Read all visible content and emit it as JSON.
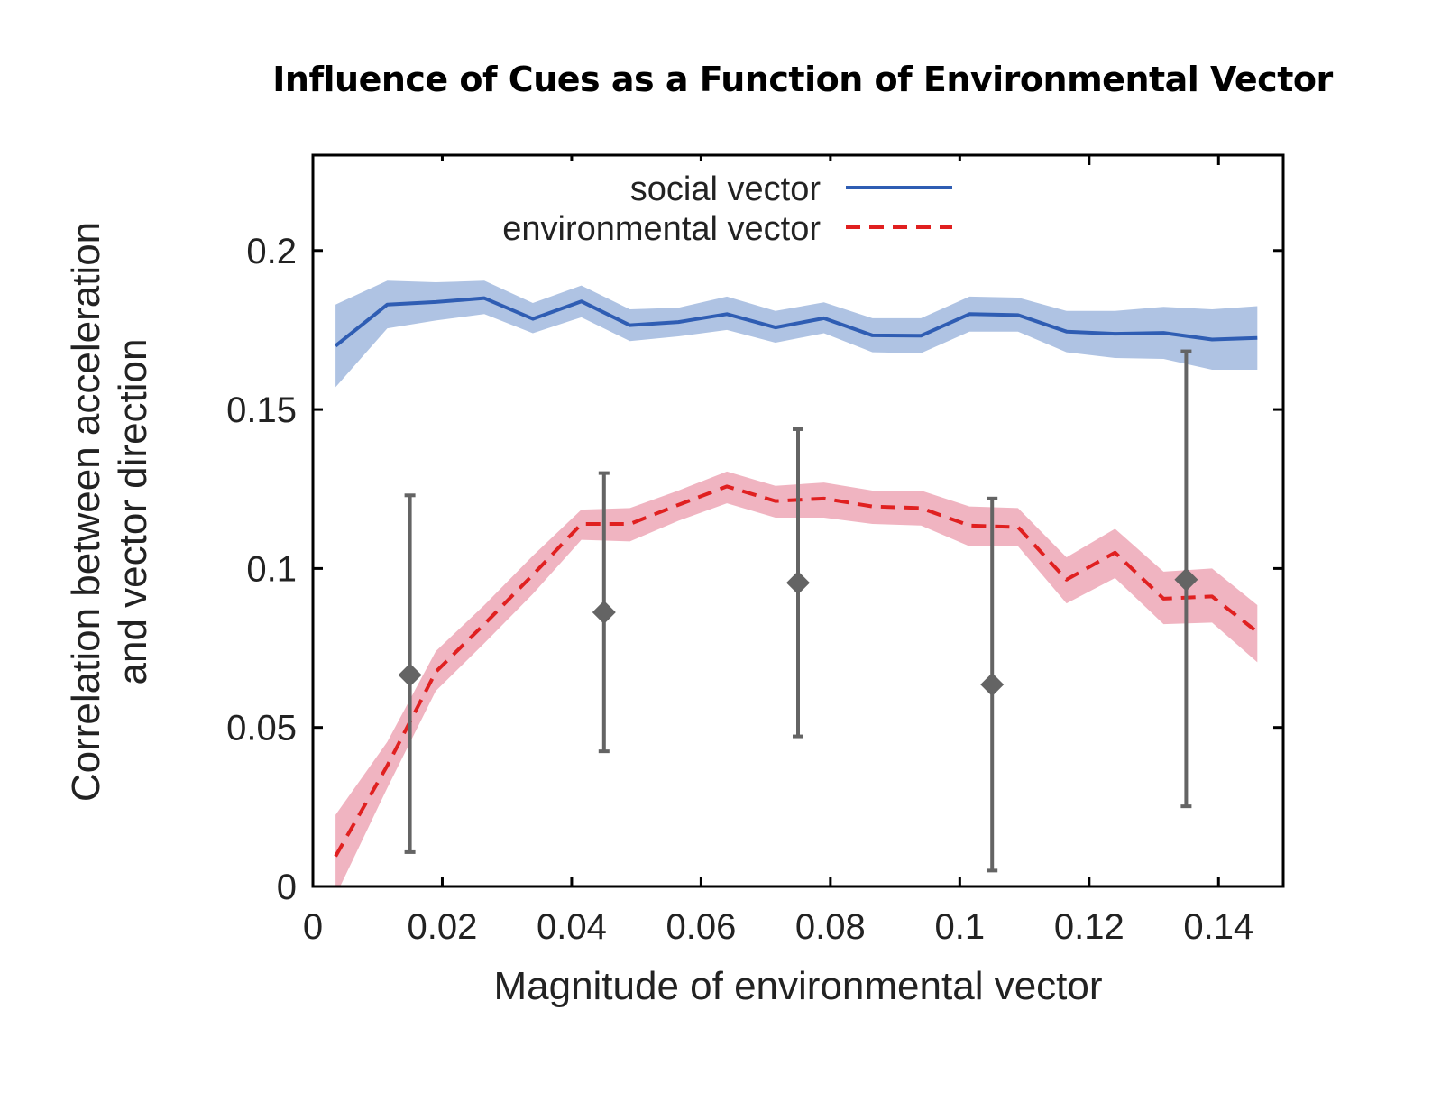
{
  "chart_data": {
    "type": "line",
    "title": "Influence of Cues as a Function of Environmental Vector",
    "xlabel": "Magnitude of environmental vector",
    "ylabel_line1": "Correlation between acceleration",
    "ylabel_line2": "and vector direction",
    "xlim": [
      0,
      0.15
    ],
    "ylim": [
      0,
      0.23
    ],
    "xticks": [
      0,
      0.02,
      0.04,
      0.06,
      0.08,
      0.1,
      0.12,
      0.14
    ],
    "xtick_labels": [
      "0",
      "0.02",
      "0.04",
      "0.06",
      "0.08",
      "0.1",
      "0.12",
      "0.14"
    ],
    "yticks": [
      0,
      0.05,
      0.1,
      0.15,
      0.2
    ],
    "ytick_labels": [
      "0",
      "0.05",
      "0.1",
      "0.15",
      "0.2"
    ],
    "grid": false,
    "legend_position": "top-center",
    "series": [
      {
        "name": "social vector",
        "style": "solid",
        "color": "#2f5db3",
        "band_color": "#afc3e3",
        "x": [
          0.0035,
          0.0115,
          0.019,
          0.0265,
          0.034,
          0.0415,
          0.049,
          0.0565,
          0.064,
          0.0715,
          0.079,
          0.0865,
          0.094,
          0.1015,
          0.109,
          0.1165,
          0.124,
          0.1315,
          0.139,
          0.146
        ],
        "y": [
          0.17,
          0.183,
          0.1838,
          0.185,
          0.1785,
          0.184,
          0.1765,
          0.1775,
          0.18,
          0.1758,
          0.1787,
          0.1733,
          0.1732,
          0.18,
          0.1797,
          0.1745,
          0.1738,
          0.1741,
          0.172,
          0.1725
        ],
        "lower": [
          0.157,
          0.1755,
          0.178,
          0.18,
          0.174,
          0.179,
          0.1715,
          0.173,
          0.175,
          0.171,
          0.174,
          0.168,
          0.1677,
          0.1745,
          0.1745,
          0.168,
          0.1662,
          0.1659,
          0.1625,
          0.1625
        ],
        "upper": [
          0.183,
          0.1905,
          0.19,
          0.1905,
          0.1835,
          0.189,
          0.1815,
          0.182,
          0.1855,
          0.181,
          0.1837,
          0.1787,
          0.1787,
          0.1855,
          0.1852,
          0.181,
          0.181,
          0.1823,
          0.1815,
          0.1825
        ]
      },
      {
        "name": "environmental vector",
        "style": "dashed",
        "color": "#e02020",
        "band_color": "#f0b4c1",
        "x": [
          0.0035,
          0.0115,
          0.019,
          0.0265,
          0.034,
          0.0415,
          0.049,
          0.0565,
          0.064,
          0.0715,
          0.079,
          0.0865,
          0.094,
          0.1015,
          0.109,
          0.1165,
          0.124,
          0.1315,
          0.139,
          0.146
        ],
        "y": [
          0.0095,
          0.038,
          0.0675,
          0.0825,
          0.098,
          0.114,
          0.114,
          0.12,
          0.1258,
          0.1212,
          0.122,
          0.1195,
          0.119,
          0.1135,
          0.113,
          0.0965,
          0.105,
          0.0905,
          0.0912,
          0.08
        ],
        "lower": [
          -0.003,
          0.031,
          0.0615,
          0.0765,
          0.092,
          0.109,
          0.1085,
          0.115,
          0.1205,
          0.116,
          0.116,
          0.114,
          0.1135,
          0.107,
          0.107,
          0.089,
          0.097,
          0.0825,
          0.083,
          0.0705
        ],
        "upper": [
          0.0225,
          0.0455,
          0.074,
          0.0885,
          0.104,
          0.1185,
          0.119,
          0.1245,
          0.1305,
          0.126,
          0.127,
          0.1245,
          0.1245,
          0.1195,
          0.119,
          0.1035,
          0.1125,
          0.099,
          0.1,
          0.0885
        ]
      }
    ],
    "points": {
      "color": "#646464",
      "x": [
        0.015,
        0.045,
        0.075,
        0.105,
        0.135
      ],
      "y": [
        0.0665,
        0.0862,
        0.0955,
        0.0635,
        0.0965
      ],
      "lower": [
        0.0108,
        0.0425,
        0.0472,
        0.005,
        0.0252
      ],
      "upper": [
        0.123,
        0.13,
        0.1438,
        0.122,
        0.1683
      ]
    }
  }
}
